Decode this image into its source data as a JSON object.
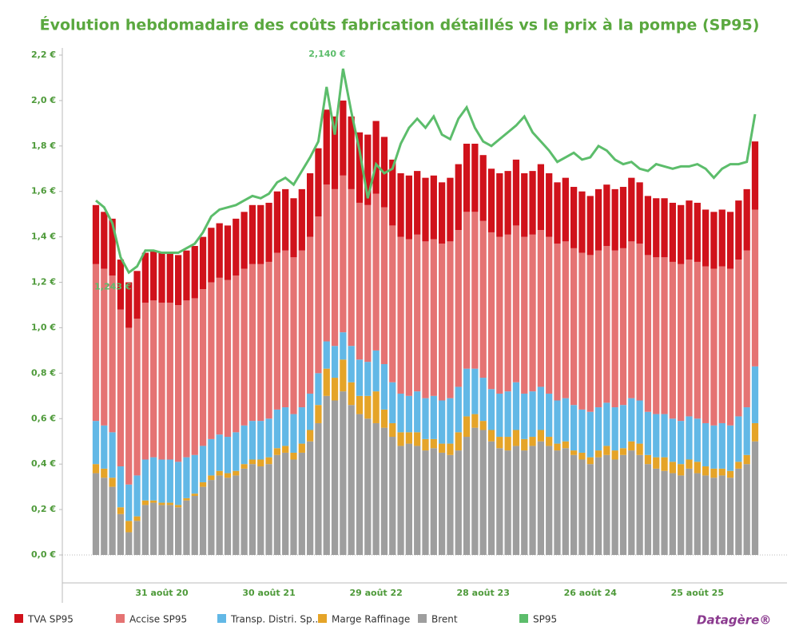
{
  "chart_data": {
    "type": "stacked-bar-line",
    "title": "Évolution hebdomadaire des coûts fabrication détaillés vs le prix à la pompe (SP95)",
    "categories": [
      null,
      null,
      null,
      null,
      null,
      null,
      null,
      null,
      "31 août 20",
      null,
      null,
      null,
      null,
      null,
      null,
      null,
      null,
      null,
      null,
      null,
      null,
      "30 août 21",
      null,
      null,
      null,
      null,
      null,
      null,
      null,
      null,
      null,
      null,
      null,
      null,
      "29 août 22",
      null,
      null,
      null,
      null,
      null,
      null,
      null,
      null,
      null,
      null,
      null,
      null,
      "28 août 23",
      null,
      null,
      null,
      null,
      null,
      null,
      null,
      null,
      null,
      null,
      null,
      null,
      "26 août 24",
      null,
      null,
      null,
      null,
      null,
      null,
      null,
      null,
      null,
      null,
      null,
      null,
      "25 août 25",
      null,
      null,
      null,
      null,
      null,
      null,
      null
    ],
    "ylim": [
      0,
      2.2
    ],
    "yticks": [
      {
        "value": 0,
        "label": "0,0 €"
      },
      {
        "value": 0.2,
        "label": "0,2 €"
      },
      {
        "value": 0.4,
        "label": "0,4 €"
      },
      {
        "value": 0.6,
        "label": "0,6 €"
      },
      {
        "value": 0.8,
        "label": "0,8 €"
      },
      {
        "value": 1.0,
        "label": "1,0 €"
      },
      {
        "value": 1.2,
        "label": "1,2 €"
      },
      {
        "value": 1.4,
        "label": "1,4 €"
      },
      {
        "value": 1.6,
        "label": "1,6 €"
      },
      {
        "value": 1.8,
        "label": "1,8 €"
      },
      {
        "value": 2.0,
        "label": "2,0 €"
      },
      {
        "value": 2.2,
        "label": "2,2 €"
      }
    ],
    "series": [
      {
        "name": "TVA SP95",
        "color": "#d0121b",
        "type": "bar",
        "values": [
          0.26,
          0.25,
          0.25,
          0.22,
          0.2,
          0.21,
          0.22,
          0.22,
          0.22,
          0.22,
          0.22,
          0.22,
          0.23,
          0.23,
          0.24,
          0.24,
          0.24,
          0.25,
          0.25,
          0.26,
          0.26,
          0.26,
          0.27,
          0.27,
          0.26,
          0.27,
          0.28,
          0.3,
          0.33,
          0.32,
          0.33,
          0.32,
          0.31,
          0.31,
          0.32,
          0.31,
          0.29,
          0.28,
          0.28,
          0.28,
          0.28,
          0.28,
          0.27,
          0.28,
          0.29,
          0.3,
          0.3,
          0.29,
          0.28,
          0.28,
          0.28,
          0.29,
          0.28,
          0.28,
          0.29,
          0.28,
          0.27,
          0.28,
          0.27,
          0.27,
          0.26,
          0.27,
          0.27,
          0.27,
          0.27,
          0.28,
          0.27,
          0.26,
          0.26,
          0.26,
          0.26,
          0.26,
          0.26,
          0.26,
          0.25,
          0.25,
          0.25,
          0.25,
          0.26,
          0.27,
          0.3
        ]
      },
      {
        "name": "Accise SP95",
        "color": "#e57373",
        "type": "bar",
        "values": [
          0.69,
          0.69,
          0.69,
          0.69,
          0.69,
          0.69,
          0.69,
          0.69,
          0.69,
          0.69,
          0.69,
          0.69,
          0.69,
          0.69,
          0.69,
          0.69,
          0.69,
          0.69,
          0.69,
          0.69,
          0.69,
          0.69,
          0.69,
          0.69,
          0.69,
          0.69,
          0.69,
          0.69,
          0.69,
          0.69,
          0.69,
          0.69,
          0.69,
          0.69,
          0.69,
          0.69,
          0.69,
          0.69,
          0.69,
          0.69,
          0.69,
          0.69,
          0.69,
          0.69,
          0.69,
          0.69,
          0.69,
          0.69,
          0.69,
          0.69,
          0.69,
          0.69,
          0.69,
          0.69,
          0.69,
          0.69,
          0.69,
          0.69,
          0.69,
          0.69,
          0.69,
          0.69,
          0.69,
          0.69,
          0.69,
          0.69,
          0.69,
          0.69,
          0.69,
          0.69,
          0.69,
          0.69,
          0.69,
          0.69,
          0.69,
          0.69,
          0.69,
          0.69,
          0.69,
          0.69,
          0.69
        ]
      },
      {
        "name": "Transp. Distri. Sp..",
        "color": "#62b8e6",
        "type": "bar",
        "values": [
          0.19,
          0.19,
          0.2,
          0.18,
          0.16,
          0.18,
          0.18,
          0.19,
          0.19,
          0.19,
          0.19,
          0.18,
          0.17,
          0.16,
          0.16,
          0.16,
          0.16,
          0.17,
          0.17,
          0.17,
          0.17,
          0.17,
          0.17,
          0.17,
          0.17,
          0.16,
          0.16,
          0.14,
          0.12,
          0.14,
          0.12,
          0.16,
          0.16,
          0.15,
          0.18,
          0.2,
          0.18,
          0.17,
          0.16,
          0.18,
          0.18,
          0.19,
          0.19,
          0.2,
          0.2,
          0.21,
          0.2,
          0.19,
          0.18,
          0.19,
          0.2,
          0.21,
          0.2,
          0.2,
          0.19,
          0.19,
          0.19,
          0.19,
          0.2,
          0.19,
          0.2,
          0.19,
          0.19,
          0.19,
          0.19,
          0.19,
          0.19,
          0.19,
          0.19,
          0.19,
          0.19,
          0.19,
          0.19,
          0.19,
          0.19,
          0.19,
          0.2,
          0.2,
          0.2,
          0.21,
          0.25
        ]
      },
      {
        "name": "Marge Raffinage",
        "color": "#e5a428",
        "type": "bar",
        "values": [
          0.04,
          0.04,
          0.04,
          0.03,
          0.05,
          0.02,
          0.02,
          0.01,
          0.01,
          0.01,
          0.01,
          0.01,
          0.01,
          0.02,
          0.02,
          0.02,
          0.02,
          0.02,
          0.02,
          0.02,
          0.03,
          0.03,
          0.03,
          0.03,
          0.03,
          0.04,
          0.05,
          0.08,
          0.12,
          0.1,
          0.14,
          0.1,
          0.08,
          0.1,
          0.14,
          0.08,
          0.06,
          0.06,
          0.05,
          0.06,
          0.05,
          0.04,
          0.04,
          0.05,
          0.08,
          0.09,
          0.06,
          0.04,
          0.05,
          0.05,
          0.06,
          0.07,
          0.05,
          0.04,
          0.05,
          0.04,
          0.03,
          0.03,
          0.02,
          0.03,
          0.03,
          0.03,
          0.04,
          0.04,
          0.03,
          0.04,
          0.05,
          0.04,
          0.05,
          0.06,
          0.05,
          0.05,
          0.04,
          0.05,
          0.04,
          0.04,
          0.03,
          0.03,
          0.03,
          0.04,
          0.08
        ]
      },
      {
        "name": "Brent",
        "color": "#9e9e9e",
        "type": "bar",
        "values": [
          0.36,
          0.34,
          0.3,
          0.18,
          0.1,
          0.15,
          0.22,
          0.23,
          0.22,
          0.22,
          0.21,
          0.24,
          0.26,
          0.3,
          0.33,
          0.35,
          0.34,
          0.35,
          0.38,
          0.4,
          0.39,
          0.4,
          0.44,
          0.45,
          0.42,
          0.45,
          0.5,
          0.58,
          0.7,
          0.68,
          0.72,
          0.66,
          0.62,
          0.6,
          0.58,
          0.56,
          0.52,
          0.48,
          0.49,
          0.48,
          0.46,
          0.47,
          0.45,
          0.44,
          0.46,
          0.52,
          0.56,
          0.55,
          0.5,
          0.47,
          0.46,
          0.48,
          0.46,
          0.48,
          0.5,
          0.48,
          0.46,
          0.47,
          0.44,
          0.42,
          0.4,
          0.43,
          0.44,
          0.42,
          0.44,
          0.46,
          0.44,
          0.4,
          0.38,
          0.37,
          0.36,
          0.35,
          0.38,
          0.36,
          0.35,
          0.34,
          0.35,
          0.34,
          0.38,
          0.4,
          0.5
        ]
      },
      {
        "name": "SP95",
        "color": "#5cbd6b",
        "type": "line",
        "values": [
          1.56,
          1.53,
          1.46,
          1.31,
          1.243,
          1.27,
          1.34,
          1.34,
          1.33,
          1.33,
          1.33,
          1.35,
          1.37,
          1.42,
          1.49,
          1.52,
          1.53,
          1.54,
          1.56,
          1.58,
          1.57,
          1.59,
          1.64,
          1.66,
          1.63,
          1.69,
          1.75,
          1.82,
          2.06,
          1.85,
          2.14,
          1.95,
          1.78,
          1.57,
          1.72,
          1.68,
          1.7,
          1.81,
          1.88,
          1.92,
          1.88,
          1.93,
          1.85,
          1.83,
          1.92,
          1.97,
          1.88,
          1.82,
          1.8,
          1.83,
          1.86,
          1.89,
          1.93,
          1.86,
          1.82,
          1.78,
          1.73,
          1.75,
          1.77,
          1.74,
          1.75,
          1.8,
          1.78,
          1.74,
          1.72,
          1.73,
          1.7,
          1.69,
          1.72,
          1.71,
          1.7,
          1.71,
          1.71,
          1.72,
          1.7,
          1.66,
          1.7,
          1.72,
          1.72,
          1.73,
          1.94
        ],
        "value_labels": [
          null,
          null,
          null,
          null,
          "1,243 €",
          null,
          null,
          null,
          null,
          null,
          null,
          null,
          null,
          null,
          null,
          null,
          null,
          null,
          null,
          null,
          null,
          null,
          null,
          null,
          null,
          null,
          null,
          null,
          null,
          null,
          "2,140 €",
          null,
          null,
          null,
          null,
          null,
          null,
          null,
          null,
          null,
          null,
          null,
          null,
          null,
          null,
          null,
          null,
          null,
          null,
          null,
          null,
          null,
          null,
          null,
          null,
          null,
          null,
          null,
          null,
          null,
          null,
          null,
          null,
          null,
          null,
          null,
          null,
          null,
          null,
          null,
          null,
          null,
          null,
          null,
          null,
          null,
          null,
          null,
          null,
          null,
          null
        ]
      }
    ]
  },
  "logo": "Datagère®"
}
